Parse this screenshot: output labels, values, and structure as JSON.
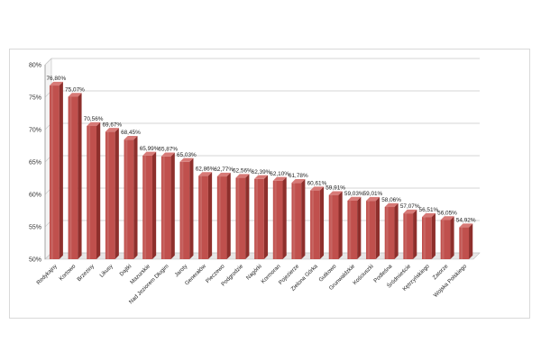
{
  "chart_data": {
    "type": "bar",
    "title": "",
    "xlabel": "",
    "ylabel": "",
    "ylim": [
      50,
      80
    ],
    "y_ticks": [
      "50%",
      "55%",
      "60%",
      "65%",
      "70%",
      "75%",
      "80%"
    ],
    "grid": true,
    "style": "3d-bar",
    "bar_color": "#c0504d",
    "categories": [
      "Redykajny",
      "Kortowo",
      "Brzeziny",
      "Likusy",
      "Dajtki",
      "Mazurskie",
      "Nad Jeziorem Długim",
      "Jaroty",
      "Generałów",
      "Pieczewo",
      "Podgrodzie",
      "Nagórki",
      "Kormoran",
      "Pojezierze",
      "Zielona Górka",
      "Gutkowo",
      "Grunwaldzkie",
      "Kościuszki",
      "Podleśna",
      "Śródmieście",
      "Kętrzyńskiego",
      "Zatorze",
      "Wojska Polskiego"
    ],
    "values": [
      76.8,
      75.07,
      70.56,
      69.67,
      68.45,
      65.99,
      65.87,
      65.03,
      62.86,
      62.77,
      62.56,
      62.39,
      62.1,
      61.78,
      60.61,
      59.91,
      59.03,
      59.01,
      58.06,
      57.07,
      56.51,
      56.05,
      54.92
    ],
    "value_labels": [
      "76,80%",
      "75,07%",
      "70,56%",
      "69,67%",
      "68,45%",
      "65,99%",
      "65,87%",
      "65,03%",
      "62,86%",
      "62,77%",
      "62,56%",
      "62,39%",
      "62,10%",
      "61,78%",
      "60,61%",
      "59,91%",
      "59,03%",
      "59,01%",
      "58,06%",
      "57,07%",
      "56,51%",
      "56,05%",
      "54,92%"
    ]
  }
}
